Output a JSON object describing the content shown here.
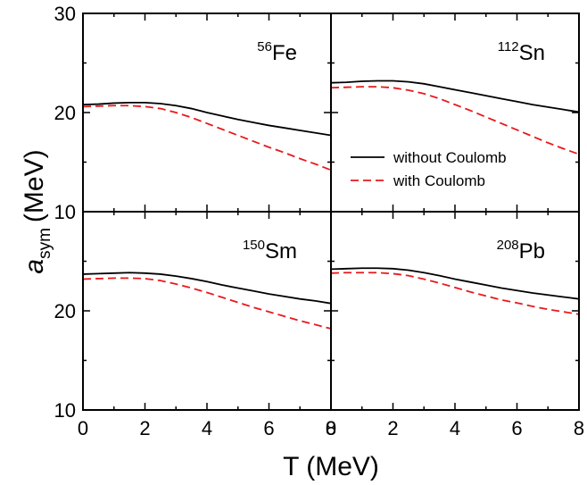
{
  "chart_data": {
    "type": "line",
    "xlabel": "T (MeV)",
    "ylabel": {
      "main": "a",
      "sub": "sym",
      "unit": "(MeV)"
    },
    "xlim": [
      0,
      8
    ],
    "ylim": [
      10,
      30
    ],
    "xticks": [
      0,
      2,
      4,
      6,
      8
    ],
    "row_ticks": {
      "top": [
        10,
        20,
        30
      ],
      "bottom": [
        10,
        20
      ]
    },
    "legend": {
      "panel": "112Sn",
      "position": "center-right",
      "entries": [
        {
          "label": "without Coulomb",
          "color": "#000000",
          "dash": "solid"
        },
        {
          "label": "with Coulomb",
          "color": "#e8191c",
          "dash": "dashed"
        }
      ]
    },
    "panels": [
      {
        "mass": "56",
        "element": "Fe",
        "series": [
          {
            "name": "without Coulomb",
            "color": "#000000",
            "x": [
              0,
              0.5,
              1,
              1.5,
              2,
              2.5,
              3,
              3.5,
              4,
              4.5,
              5,
              5.5,
              6,
              6.5,
              7,
              7.5,
              8
            ],
            "y": [
              20.8,
              20.85,
              20.95,
              21.0,
              21.0,
              20.9,
              20.7,
              20.4,
              20.0,
              19.65,
              19.3,
              19.0,
              18.7,
              18.45,
              18.2,
              17.95,
              17.7
            ]
          },
          {
            "name": "with Coulomb",
            "color": "#e8191c",
            "x": [
              0,
              0.5,
              1,
              1.5,
              2,
              2.5,
              3,
              3.5,
              4,
              4.5,
              5,
              5.5,
              6,
              6.5,
              7,
              7.5,
              8
            ],
            "y": [
              20.6,
              20.65,
              20.7,
              20.7,
              20.6,
              20.4,
              20.0,
              19.5,
              18.9,
              18.3,
              17.7,
              17.1,
              16.5,
              15.95,
              15.35,
              14.8,
              14.2
            ]
          }
        ]
      },
      {
        "mass": "112",
        "element": "Sn",
        "series": [
          {
            "name": "without Coulomb",
            "color": "#000000",
            "x": [
              0,
              0.5,
              1,
              1.5,
              2,
              2.5,
              3,
              3.5,
              4,
              4.5,
              5,
              5.5,
              6,
              6.5,
              7,
              7.5,
              8
            ],
            "y": [
              23.0,
              23.05,
              23.15,
              23.2,
              23.2,
              23.1,
              22.9,
              22.6,
              22.3,
              22.0,
              21.7,
              21.4,
              21.1,
              20.8,
              20.55,
              20.3,
              20.05
            ]
          },
          {
            "name": "with Coulomb",
            "color": "#e8191c",
            "x": [
              0,
              0.5,
              1,
              1.5,
              2,
              2.5,
              3,
              3.5,
              4,
              4.5,
              5,
              5.5,
              6,
              6.5,
              7,
              7.5,
              8
            ],
            "y": [
              22.5,
              22.55,
              22.6,
              22.6,
              22.5,
              22.25,
              21.9,
              21.4,
              20.8,
              20.2,
              19.55,
              18.9,
              18.25,
              17.6,
              16.95,
              16.35,
              15.8
            ]
          }
        ]
      },
      {
        "mass": "150",
        "element": "Sm",
        "series": [
          {
            "name": "without Coulomb",
            "color": "#000000",
            "x": [
              0,
              0.5,
              1,
              1.5,
              2,
              2.5,
              3,
              3.5,
              4,
              4.5,
              5,
              5.5,
              6,
              6.5,
              7,
              7.5,
              8
            ],
            "y": [
              23.7,
              23.75,
              23.8,
              23.85,
              23.8,
              23.7,
              23.5,
              23.25,
              22.95,
              22.6,
              22.3,
              22.0,
              21.7,
              21.45,
              21.2,
              21.0,
              20.75
            ]
          },
          {
            "name": "with Coulomb",
            "color": "#e8191c",
            "x": [
              0,
              0.5,
              1,
              1.5,
              2,
              2.5,
              3,
              3.5,
              4,
              4.5,
              5,
              5.5,
              6,
              6.5,
              7,
              7.5,
              8
            ],
            "y": [
              23.2,
              23.25,
              23.3,
              23.3,
              23.25,
              23.05,
              22.7,
              22.3,
              21.85,
              21.35,
              20.85,
              20.35,
              19.9,
              19.45,
              19.0,
              18.6,
              18.2
            ]
          }
        ]
      },
      {
        "mass": "208",
        "element": "Pb",
        "series": [
          {
            "name": "without Coulomb",
            "color": "#000000",
            "x": [
              0,
              0.5,
              1,
              1.5,
              2,
              2.5,
              3,
              3.5,
              4,
              4.5,
              5,
              5.5,
              6,
              6.5,
              7,
              7.5,
              8
            ],
            "y": [
              24.2,
              24.25,
              24.3,
              24.3,
              24.25,
              24.1,
              23.85,
              23.55,
              23.2,
              22.9,
              22.6,
              22.3,
              22.05,
              21.8,
              21.6,
              21.4,
              21.2
            ]
          },
          {
            "name": "with Coulomb",
            "color": "#e8191c",
            "x": [
              0,
              0.5,
              1,
              1.5,
              2,
              2.5,
              3,
              3.5,
              4,
              4.5,
              5,
              5.5,
              6,
              6.5,
              7,
              7.5,
              8
            ],
            "y": [
              23.8,
              23.85,
              23.85,
              23.85,
              23.75,
              23.55,
              23.2,
              22.8,
              22.35,
              21.9,
              21.5,
              21.1,
              20.8,
              20.45,
              20.15,
              19.9,
              19.65
            ]
          }
        ]
      }
    ]
  }
}
